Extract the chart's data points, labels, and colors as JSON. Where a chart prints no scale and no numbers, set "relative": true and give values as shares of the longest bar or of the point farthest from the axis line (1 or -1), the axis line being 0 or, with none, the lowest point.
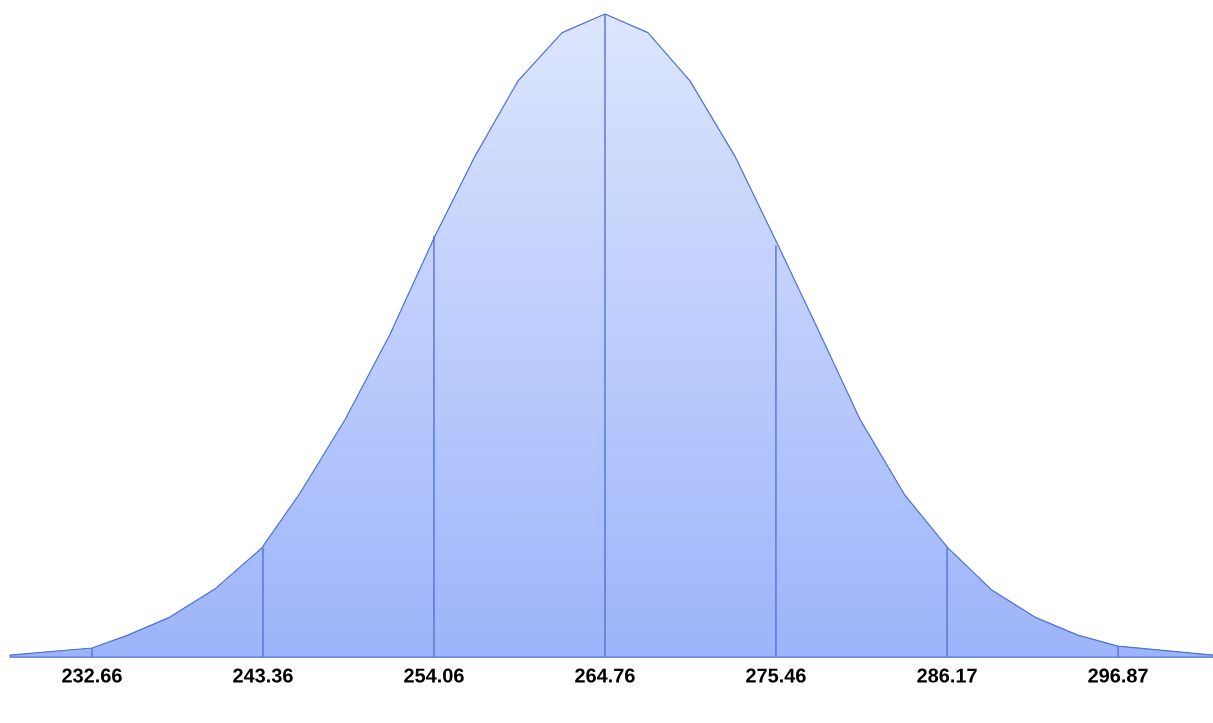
{
  "chart_data": {
    "type": "area",
    "relative": true,
    "series": [
      {
        "color": "#4f74d9",
        "x": [
          227.53,
          232.66,
          234.91,
          237.54,
          240.36,
          243.3,
          245.68,
          248.49,
          251.31,
          254.13,
          256.63,
          259.32,
          262.08,
          264.76,
          267.45,
          270.08,
          272.89,
          275.58,
          278.08,
          280.71,
          283.52,
          286.21,
          288.97,
          291.66,
          294.35,
          296.85,
          302.81
        ],
        "values": [
          0.003,
          0.014,
          0.034,
          0.062,
          0.106,
          0.17,
          0.255,
          0.369,
          0.502,
          0.655,
          0.779,
          0.896,
          0.971,
          1.0,
          0.971,
          0.896,
          0.779,
          0.641,
          0.51,
          0.37,
          0.252,
          0.17,
          0.104,
          0.062,
          0.034,
          0.017,
          0.003
        ]
      },
      {
        "type": "bar",
        "color": "#4f74d9",
        "x": [
          232.66,
          243.36,
          254.06,
          264.76,
          275.46,
          286.17,
          296.87
        ],
        "values": [
          0.014,
          0.17,
          0.655,
          1.0,
          0.64,
          0.17,
          0.017
        ]
      }
    ],
    "xlim": [
      227.53,
      302.81
    ],
    "xticks": [
      232.66,
      243.36,
      254.06,
      264.76,
      275.46,
      286.17,
      296.87
    ]
  }
}
